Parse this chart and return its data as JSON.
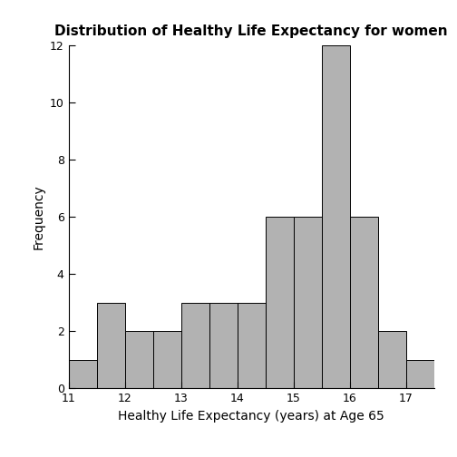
{
  "title": "Distribution of Healthy Life Expectancy for women",
  "xlabel": "Healthy Life Expectancy (years) at Age 65",
  "ylabel": "Frequency",
  "bin_edges": [
    11.0,
    11.5,
    12.0,
    12.5,
    13.0,
    13.5,
    14.0,
    14.5,
    15.0,
    15.5,
    16.0,
    16.5,
    17.0,
    17.5
  ],
  "frequencies": [
    1,
    3,
    2,
    2,
    3,
    3,
    3,
    6,
    6,
    12,
    6,
    2,
    1
  ],
  "bar_color": "#b2b2b2",
  "bar_edgecolor": "#000000",
  "xlim": [
    11,
    17.5
  ],
  "ylim": [
    0,
    12
  ],
  "xticks": [
    11,
    12,
    13,
    14,
    15,
    16,
    17
  ],
  "yticks": [
    0,
    2,
    4,
    6,
    8,
    10,
    12
  ],
  "background_color": "#ffffff",
  "title_fontsize": 11,
  "label_fontsize": 10,
  "tick_fontsize": 9
}
